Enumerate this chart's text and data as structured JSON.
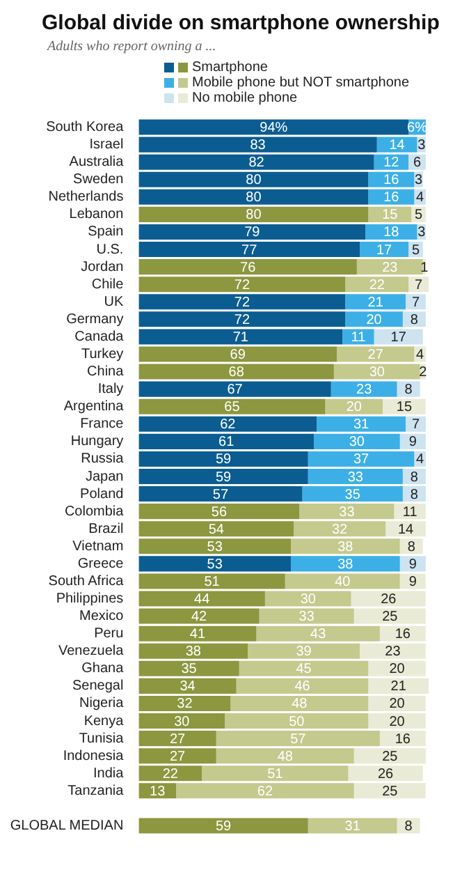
{
  "chart_data": {
    "type": "bar",
    "orientation": "horizontal",
    "stacked": true,
    "title": "Global divide on smartphone ownership",
    "subtitle": "Adults who report owning a ...",
    "legend": "top",
    "tick_labels": "y",
    "data_labels": true,
    "categories": [
      "South Korea",
      "Israel",
      "Australia",
      "Sweden",
      "Netherlands",
      "Lebanon",
      "Spain",
      "U.S.",
      "Jordan",
      "Chile",
      "UK",
      "Germany",
      "Canada",
      "Turkey",
      "China",
      "Italy",
      "Argentina",
      "France",
      "Hungary",
      "Russia",
      "Japan",
      "Poland",
      "Colombia",
      "Brazil",
      "Vietnam",
      "Greece",
      "South Africa",
      "Philippines",
      "Mexico",
      "Peru",
      "Venezuela",
      "Ghana",
      "Senegal",
      "Nigeria",
      "Kenya",
      "Tunisia",
      "Indonesia",
      "India",
      "Tanzania",
      null,
      "GLOBAL MEDIAN"
    ],
    "series": [
      {
        "name": "Smartphone",
        "values": [
          94,
          83,
          82,
          80,
          80,
          80,
          79,
          77,
          76,
          72,
          72,
          72,
          71,
          69,
          68,
          67,
          65,
          62,
          61,
          59,
          59,
          57,
          56,
          54,
          53,
          53,
          51,
          44,
          42,
          41,
          38,
          35,
          34,
          32,
          30,
          27,
          27,
          22,
          13,
          null,
          59
        ],
        "value_labels": [
          "94%",
          "83",
          "82",
          "80",
          "80",
          "80",
          "79",
          "77",
          "76",
          "72",
          "72",
          "72",
          "71",
          "69",
          "68",
          "67",
          "65",
          "62",
          "61",
          "59",
          "59",
          "57",
          "56",
          "54",
          "53",
          "53",
          "51",
          "44",
          "42",
          "41",
          "38",
          "35",
          "34",
          "32",
          "30",
          "27",
          "27",
          "22",
          "13",
          null,
          "59"
        ],
        "colors": [
          "#0b5d91",
          "#0b5d91",
          "#0b5d91",
          "#0b5d91",
          "#0b5d91",
          "#8c973f",
          "#0b5d91",
          "#0b5d91",
          "#8c973f",
          "#8c973f",
          "#0b5d91",
          "#0b5d91",
          "#0b5d91",
          "#8c973f",
          "#8c973f",
          "#0b5d91",
          "#8c973f",
          "#0b5d91",
          "#0b5d91",
          "#0b5d91",
          "#0b5d91",
          "#0b5d91",
          "#8c973f",
          "#8c973f",
          "#8c973f",
          "#0b5d91",
          "#8c973f",
          "#8c973f",
          "#8c973f",
          "#8c973f",
          "#8c973f",
          "#8c973f",
          "#8c973f",
          "#8c973f",
          "#8c973f",
          "#8c973f",
          "#8c973f",
          "#8c973f",
          "#8c973f",
          "#8c973f",
          "#8c973f"
        ]
      },
      {
        "name": "Mobile phone but NOT smartphone",
        "values": [
          6,
          14,
          12,
          16,
          16,
          15,
          18,
          17,
          23,
          22,
          21,
          20,
          11,
          27,
          30,
          23,
          20,
          31,
          30,
          37,
          33,
          35,
          33,
          32,
          38,
          38,
          40,
          30,
          33,
          43,
          39,
          45,
          46,
          48,
          50,
          57,
          48,
          51,
          62,
          null,
          31
        ],
        "value_labels": [
          "6%",
          "14",
          "12",
          "16",
          "16",
          "15",
          "18",
          "17",
          "23",
          "22",
          "21",
          "20",
          "11",
          "27",
          "30",
          "23",
          "20",
          "31",
          "30",
          "37",
          "33",
          "35",
          "33",
          "32",
          "38",
          "38",
          "40",
          "30",
          "33",
          "43",
          "39",
          "45",
          "46",
          "48",
          "50",
          "57",
          "48",
          "51",
          "62",
          null,
          "31"
        ],
        "colors": [
          "#3cb0e6",
          "#3cb0e6",
          "#3cb0e6",
          "#3cb0e6",
          "#3cb0e6",
          "#c4c98e",
          "#3cb0e6",
          "#3cb0e6",
          "#c4c98e",
          "#c4c98e",
          "#3cb0e6",
          "#3cb0e6",
          "#3cb0e6",
          "#c4c98e",
          "#c4c98e",
          "#3cb0e6",
          "#c4c98e",
          "#3cb0e6",
          "#3cb0e6",
          "#3cb0e6",
          "#3cb0e6",
          "#3cb0e6",
          "#c4c98e",
          "#c4c98e",
          "#c4c98e",
          "#3cb0e6",
          "#c4c98e",
          "#c4c98e",
          "#c4c98e",
          "#c4c98e",
          "#c4c98e",
          "#c4c98e",
          "#c4c98e",
          "#c4c98e",
          "#c4c98e",
          "#c4c98e",
          "#c4c98e",
          "#c4c98e",
          "#c4c98e",
          "#c4c98e",
          "#c4c98e"
        ]
      },
      {
        "name": "No mobile phone",
        "values": [
          null,
          3,
          6,
          3,
          4,
          5,
          3,
          5,
          1,
          7,
          7,
          8,
          17,
          4,
          2,
          8,
          15,
          7,
          9,
          4,
          8,
          8,
          11,
          14,
          8,
          9,
          9,
          26,
          25,
          16,
          23,
          20,
          21,
          20,
          20,
          16,
          25,
          26,
          25,
          null,
          8
        ],
        "colors": [
          "#cde3f0",
          "#cde3f0",
          "#cde3f0",
          "#cde3f0",
          "#cde3f0",
          "#e9ebd6",
          "#cde3f0",
          "#cde3f0",
          "#e9ebd6",
          "#e9ebd6",
          "#cde3f0",
          "#cde3f0",
          "#cde3f0",
          "#e9ebd6",
          "#e9ebd6",
          "#cde3f0",
          "#e9ebd6",
          "#cde3f0",
          "#cde3f0",
          "#cde3f0",
          "#cde3f0",
          "#cde3f0",
          "#e9ebd6",
          "#e9ebd6",
          "#e9ebd6",
          "#cde3f0",
          "#e9ebd6",
          "#e9ebd6",
          "#e9ebd6",
          "#e9ebd6",
          "#e9ebd6",
          "#e9ebd6",
          "#e9ebd6",
          "#e9ebd6",
          "#e9ebd6",
          "#e9ebd6",
          "#e9ebd6",
          "#e9ebd6",
          "#e9ebd6",
          "#e9ebd6",
          "#e9ebd6"
        ]
      }
    ]
  }
}
